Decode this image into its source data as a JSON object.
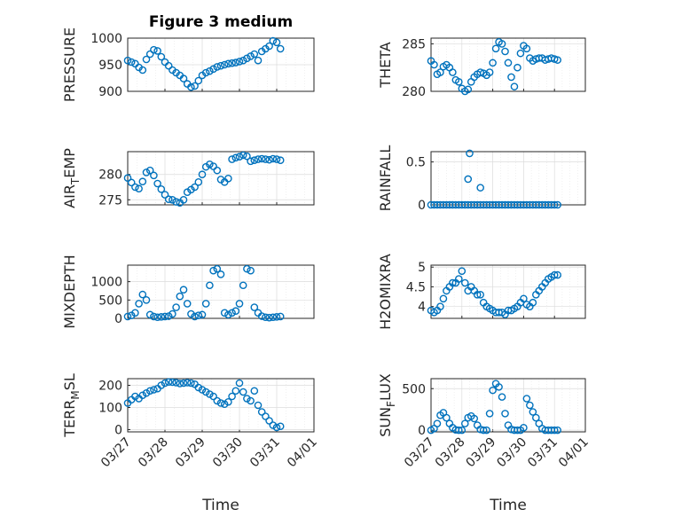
{
  "figure": {
    "title": "Figure 3 medium",
    "accent": "#0072BD"
  },
  "chart_data": [
    {
      "type": "scatter",
      "name_key": "pressure",
      "title": "Figure 3 medium",
      "ylabel": "PRESSURE",
      "ylabel_sub": "",
      "ylabel_suffix": "",
      "xlabel": "",
      "x_ticks": [
        "03/27",
        "03/28",
        "03/29",
        "03/30",
        "03/31",
        "04/01"
      ],
      "xlim": [
        0,
        5
      ],
      "ylim": [
        900,
        1000
      ],
      "yticks": [
        900,
        950,
        1000
      ],
      "ytick_labels": [
        "900",
        "950",
        "1000"
      ],
      "grid": true,
      "x": [
        0,
        0.1,
        0.2,
        0.3,
        0.4,
        0.5,
        0.6,
        0.7,
        0.8,
        0.9,
        1.0,
        1.1,
        1.2,
        1.3,
        1.4,
        1.5,
        1.6,
        1.7,
        1.8,
        1.9,
        2.0,
        2.1,
        2.2,
        2.3,
        2.4,
        2.5,
        2.6,
        2.7,
        2.8,
        2.9,
        3.0,
        3.1,
        3.2,
        3.3,
        3.4,
        3.5,
        3.6,
        3.7,
        3.8,
        3.9,
        4.0,
        4.1
      ],
      "y": [
        958,
        955,
        952,
        945,
        940,
        960,
        970,
        978,
        976,
        965,
        955,
        948,
        940,
        935,
        930,
        924,
        914,
        908,
        910,
        920,
        930,
        935,
        938,
        942,
        946,
        948,
        950,
        952,
        953,
        954,
        956,
        958,
        962,
        966,
        970,
        958,
        975,
        980,
        985,
        995,
        992,
        980
      ]
    },
    {
      "type": "scatter",
      "name_key": "theta",
      "title": "",
      "ylabel": "THETA",
      "ylabel_sub": "",
      "ylabel_suffix": "",
      "xlabel": "",
      "x_ticks": [
        "03/27",
        "03/28",
        "03/29",
        "03/30",
        "03/31",
        "04/01"
      ],
      "xlim": [
        0,
        5
      ],
      "ylim": [
        280,
        285.6
      ],
      "yticks": [
        280,
        285
      ],
      "ytick_labels": [
        "280",
        "285"
      ],
      "grid": true,
      "x": [
        0,
        0.1,
        0.2,
        0.3,
        0.4,
        0.5,
        0.6,
        0.7,
        0.8,
        0.9,
        1.0,
        1.1,
        1.2,
        1.3,
        1.4,
        1.5,
        1.6,
        1.7,
        1.8,
        1.9,
        2.0,
        2.1,
        2.2,
        2.3,
        2.4,
        2.5,
        2.6,
        2.7,
        2.8,
        2.9,
        3.0,
        3.1,
        3.2,
        3.3,
        3.4,
        3.5,
        3.6,
        3.7,
        3.8,
        3.9,
        4.0,
        4.1
      ],
      "y": [
        283.2,
        282.8,
        281.8,
        282.0,
        282.6,
        282.8,
        282.5,
        282.0,
        281.2,
        281.0,
        280.3,
        280.0,
        280.2,
        281.0,
        281.5,
        281.8,
        282.0,
        281.9,
        281.7,
        282.0,
        283.0,
        284.5,
        285.2,
        285.0,
        284.2,
        283.0,
        281.5,
        280.5,
        282.5,
        284.0,
        284.8,
        284.5,
        283.5,
        283.2,
        283.4,
        283.5,
        283.5,
        283.3,
        283.4,
        283.5,
        283.4,
        283.3
      ]
    },
    {
      "type": "scatter",
      "name_key": "airtemp",
      "title": "",
      "ylabel": "AIR",
      "ylabel_sub": "T",
      "ylabel_suffix": "EMP",
      "xlabel": "",
      "x_ticks": [
        "03/27",
        "03/28",
        "03/29",
        "03/30",
        "03/31",
        "04/01"
      ],
      "xlim": [
        0,
        5
      ],
      "ylim": [
        274,
        284.5
      ],
      "yticks": [
        275,
        280
      ],
      "ytick_labels": [
        "275",
        "280"
      ],
      "grid": true,
      "x": [
        0,
        0.1,
        0.2,
        0.3,
        0.4,
        0.5,
        0.6,
        0.7,
        0.8,
        0.9,
        1.0,
        1.1,
        1.2,
        1.3,
        1.4,
        1.5,
        1.6,
        1.7,
        1.8,
        1.9,
        2.0,
        2.1,
        2.2,
        2.3,
        2.4,
        2.5,
        2.6,
        2.7,
        2.8,
        2.9,
        3.0,
        3.1,
        3.2,
        3.3,
        3.4,
        3.5,
        3.6,
        3.7,
        3.8,
        3.9,
        4.0,
        4.1
      ],
      "y": [
        279.3,
        278.4,
        277.5,
        277.2,
        278.6,
        280.4,
        280.8,
        279.8,
        278.2,
        277.1,
        276.0,
        275.1,
        275.0,
        274.6,
        274.4,
        275.0,
        276.5,
        277.0,
        277.5,
        278.5,
        280.0,
        281.5,
        282.0,
        281.6,
        280.8,
        279.0,
        278.5,
        279.2,
        283.0,
        283.3,
        283.5,
        283.8,
        283.6,
        282.6,
        282.8,
        283.0,
        283.1,
        283.0,
        282.9,
        283.1,
        283.0,
        282.8
      ]
    },
    {
      "type": "scatter",
      "name_key": "rainfall",
      "title": "",
      "ylabel": "RAINFALL",
      "ylabel_sub": "",
      "ylabel_suffix": "",
      "xlabel": "",
      "x_ticks": [
        "03/27",
        "03/28",
        "03/29",
        "03/30",
        "03/31",
        "04/01"
      ],
      "xlim": [
        0,
        5
      ],
      "ylim": [
        0,
        0.62
      ],
      "yticks": [
        0,
        0.5
      ],
      "ytick_labels": [
        "0",
        "0.5"
      ],
      "grid": true,
      "x": [
        0,
        0.1,
        0.2,
        0.3,
        0.4,
        0.5,
        0.6,
        0.7,
        0.8,
        0.9,
        1.0,
        1.1,
        1.2,
        1.3,
        1.4,
        1.5,
        1.6,
        1.7,
        1.8,
        1.9,
        2.0,
        2.1,
        2.2,
        2.3,
        2.4,
        2.5,
        2.6,
        2.7,
        2.8,
        2.9,
        3.0,
        3.1,
        3.2,
        3.3,
        3.4,
        3.5,
        3.6,
        3.7,
        3.8,
        3.9,
        4.0,
        4.1,
        1.2,
        1.25,
        1.6
      ],
      "y": [
        0,
        0,
        0,
        0,
        0,
        0,
        0,
        0,
        0,
        0,
        0,
        0,
        0,
        0,
        0,
        0,
        0,
        0,
        0,
        0,
        0,
        0,
        0,
        0,
        0,
        0,
        0,
        0,
        0,
        0,
        0,
        0,
        0,
        0,
        0,
        0,
        0,
        0,
        0,
        0,
        0,
        0,
        0.3,
        0.6,
        0.2
      ]
    },
    {
      "type": "scatter",
      "name_key": "mixdepth",
      "title": "",
      "ylabel": "MIXDEPTH",
      "ylabel_sub": "",
      "ylabel_suffix": "",
      "xlabel": "",
      "x_ticks": [
        "03/27",
        "03/28",
        "03/29",
        "03/30",
        "03/31",
        "04/01"
      ],
      "xlim": [
        0,
        5
      ],
      "ylim": [
        0,
        1450
      ],
      "yticks": [
        0,
        500,
        1000
      ],
      "ytick_labels": [
        "0",
        "500",
        "1000"
      ],
      "grid": true,
      "x": [
        0,
        0.1,
        0.2,
        0.3,
        0.4,
        0.5,
        0.6,
        0.7,
        0.8,
        0.9,
        1.0,
        1.1,
        1.2,
        1.3,
        1.4,
        1.5,
        1.6,
        1.7,
        1.8,
        1.9,
        2.0,
        2.1,
        2.2,
        2.3,
        2.4,
        2.5,
        2.6,
        2.7,
        2.8,
        2.9,
        3.0,
        3.1,
        3.2,
        3.3,
        3.4,
        3.5,
        3.6,
        3.7,
        3.8,
        3.9,
        4.0,
        4.1
      ],
      "y": [
        50,
        80,
        150,
        400,
        650,
        500,
        100,
        50,
        30,
        40,
        50,
        60,
        120,
        300,
        600,
        780,
        400,
        120,
        50,
        80,
        100,
        400,
        900,
        1300,
        1350,
        1200,
        150,
        100,
        150,
        200,
        400,
        900,
        1350,
        1300,
        300,
        150,
        60,
        30,
        20,
        30,
        40,
        50
      ]
    },
    {
      "type": "scatter",
      "name_key": "h2omixra",
      "title": "",
      "ylabel": "H2OMIXRA",
      "ylabel_sub": "",
      "ylabel_suffix": "",
      "xlabel": "",
      "x_ticks": [
        "03/27",
        "03/28",
        "03/29",
        "03/30",
        "03/31",
        "04/01"
      ],
      "xlim": [
        0,
        5
      ],
      "ylim": [
        3.7,
        5.05
      ],
      "yticks": [
        4,
        4.5,
        5
      ],
      "ytick_labels": [
        "4",
        "4.5",
        "5"
      ],
      "grid": true,
      "x": [
        0,
        0.1,
        0.2,
        0.3,
        0.4,
        0.5,
        0.6,
        0.7,
        0.8,
        0.9,
        1.0,
        1.1,
        1.2,
        1.3,
        1.4,
        1.5,
        1.6,
        1.7,
        1.8,
        1.9,
        2.0,
        2.1,
        2.2,
        2.3,
        2.4,
        2.5,
        2.6,
        2.7,
        2.8,
        2.9,
        3.0,
        3.1,
        3.2,
        3.3,
        3.4,
        3.5,
        3.6,
        3.7,
        3.8,
        3.9,
        4.0,
        4.1
      ],
      "y": [
        3.9,
        3.85,
        3.9,
        4.0,
        4.2,
        4.4,
        4.5,
        4.6,
        4.6,
        4.7,
        4.9,
        4.6,
        4.4,
        4.5,
        4.4,
        4.3,
        4.3,
        4.1,
        4.0,
        3.95,
        3.9,
        3.85,
        3.85,
        3.85,
        3.8,
        3.9,
        3.9,
        3.95,
        4.0,
        4.1,
        4.2,
        4.05,
        4.0,
        4.1,
        4.3,
        4.4,
        4.5,
        4.6,
        4.7,
        4.75,
        4.8,
        4.8
      ]
    },
    {
      "type": "scatter",
      "name_key": "terrmsl",
      "title": "",
      "ylabel": "TERR",
      "ylabel_sub": "M",
      "ylabel_suffix": "SL",
      "xlabel": "Time",
      "x_ticks": [
        "03/27",
        "03/28",
        "03/29",
        "03/30",
        "03/31",
        "04/01"
      ],
      "xlim": [
        0,
        5
      ],
      "ylim": [
        -10,
        230
      ],
      "yticks": [
        0,
        100,
        200
      ],
      "ytick_labels": [
        "0",
        "100",
        "200"
      ],
      "grid": true,
      "x": [
        0,
        0.1,
        0.2,
        0.3,
        0.4,
        0.5,
        0.6,
        0.7,
        0.8,
        0.9,
        1.0,
        1.1,
        1.2,
        1.3,
        1.4,
        1.5,
        1.6,
        1.7,
        1.8,
        1.9,
        2.0,
        2.1,
        2.2,
        2.3,
        2.4,
        2.5,
        2.6,
        2.7,
        2.8,
        2.9,
        3.0,
        3.1,
        3.2,
        3.3,
        3.4,
        3.5,
        3.6,
        3.7,
        3.8,
        3.9,
        4.0,
        4.1
      ],
      "y": [
        120,
        135,
        150,
        140,
        155,
        165,
        175,
        180,
        185,
        200,
        210,
        215,
        214,
        212,
        208,
        210,
        212,
        210,
        205,
        190,
        180,
        170,
        160,
        150,
        130,
        120,
        115,
        125,
        150,
        175,
        210,
        170,
        140,
        130,
        175,
        110,
        80,
        60,
        40,
        20,
        10,
        15
      ]
    },
    {
      "type": "scatter",
      "name_key": "sunflux",
      "title": "",
      "ylabel": "SUN",
      "ylabel_sub": "F",
      "ylabel_suffix": "LUX",
      "xlabel": "Time",
      "x_ticks": [
        "03/27",
        "03/28",
        "03/29",
        "03/30",
        "03/31",
        "04/01"
      ],
      "xlim": [
        0,
        5
      ],
      "ylim": [
        -20,
        620
      ],
      "yticks": [
        0,
        500
      ],
      "ytick_labels": [
        "0",
        "500"
      ],
      "grid": true,
      "x": [
        0,
        0.1,
        0.2,
        0.3,
        0.4,
        0.5,
        0.6,
        0.7,
        0.8,
        0.9,
        1.0,
        1.1,
        1.2,
        1.3,
        1.4,
        1.5,
        1.6,
        1.7,
        1.8,
        1.9,
        2.0,
        2.1,
        2.2,
        2.3,
        2.4,
        2.5,
        2.6,
        2.7,
        2.8,
        2.9,
        3.0,
        3.1,
        3.2,
        3.3,
        3.4,
        3.5,
        3.6,
        3.7,
        3.8,
        3.9,
        4.0,
        4.1
      ],
      "y": [
        0,
        20,
        80,
        180,
        210,
        150,
        80,
        30,
        5,
        0,
        0,
        80,
        150,
        170,
        140,
        60,
        10,
        0,
        0,
        200,
        480,
        560,
        520,
        400,
        200,
        60,
        10,
        0,
        0,
        0,
        30,
        380,
        300,
        220,
        150,
        80,
        20,
        0,
        0,
        0,
        0,
        0
      ]
    }
  ]
}
